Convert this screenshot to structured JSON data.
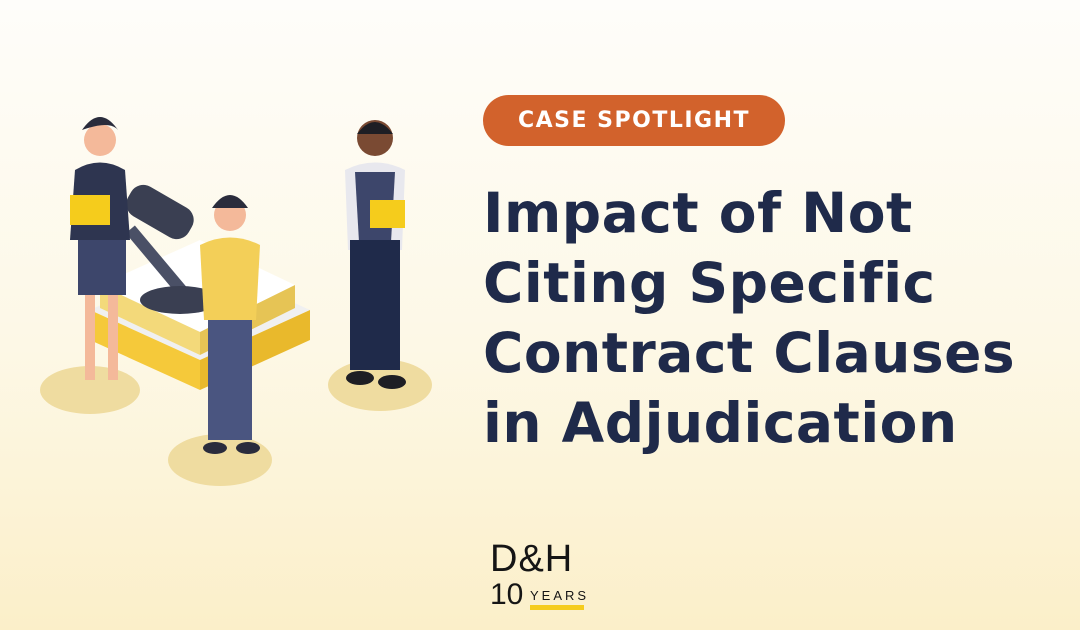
{
  "badge": {
    "label": "CASE SPOTLIGHT",
    "color": "#d2622c"
  },
  "headline": {
    "lines": [
      "Impact of Not",
      "Citing Specific",
      "Contract Clauses",
      "in Adjudication"
    ],
    "color": "#1f2a4a"
  },
  "logo": {
    "brand": "D&H",
    "number": "10",
    "word": "YEARS",
    "accent": "#f5cc1c"
  },
  "illustration": {
    "subject": "legal professionals with gavel and law books"
  }
}
